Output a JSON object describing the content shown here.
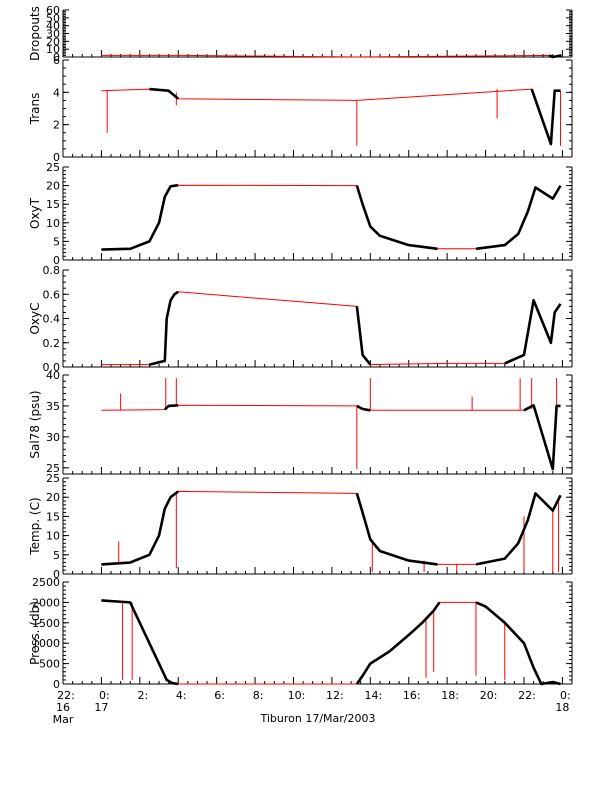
{
  "title": "Tiburon 17/Mar/2003",
  "colors": {
    "data": "#000000",
    "gap_line": "#ff0000",
    "axis": "#000000"
  },
  "x_axis": {
    "unit": "hour of 17/Mar/2003",
    "range": [
      -2,
      24.5
    ],
    "ticks": [
      {
        "value": -2,
        "lines": [
          "22:",
          "16",
          "Mar"
        ]
      },
      {
        "value": 0,
        "lines": [
          "0:",
          "17"
        ]
      },
      {
        "value": 2,
        "lines": [
          "2:"
        ]
      },
      {
        "value": 4,
        "lines": [
          "4:"
        ]
      },
      {
        "value": 6,
        "lines": [
          "6:"
        ]
      },
      {
        "value": 8,
        "lines": [
          "8:"
        ]
      },
      {
        "value": 10,
        "lines": [
          "10:"
        ]
      },
      {
        "value": 12,
        "lines": [
          "12:"
        ]
      },
      {
        "value": 14,
        "lines": [
          "14:"
        ]
      },
      {
        "value": 16,
        "lines": [
          "16:"
        ]
      },
      {
        "value": 18,
        "lines": [
          "18:"
        ]
      },
      {
        "value": 20,
        "lines": [
          "20:"
        ]
      },
      {
        "value": 22,
        "lines": [
          "22:"
        ]
      },
      {
        "value": 24,
        "lines": [
          "0:",
          "18"
        ]
      }
    ]
  },
  "chart_data": [
    {
      "type": "line",
      "ylabel": "Dropouts",
      "ylim": [
        0,
        60
      ],
      "ticks": [
        0,
        10,
        20,
        30,
        40,
        50,
        60
      ],
      "series": [
        {
          "x": [
            0,
            4.2,
            13.3,
            23.3,
            23.5,
            23.95
          ],
          "y": [
            2,
            2,
            0,
            2,
            0,
            2
          ]
        }
      ]
    },
    {
      "type": "line",
      "ylabel": "Trans",
      "ylim": [
        0,
        6
      ],
      "ticks": [
        0,
        2,
        4,
        6
      ],
      "series": [
        {
          "x": [
            0,
            2.5,
            3.5,
            4.0,
            13.3,
            22.4,
            23.4,
            23.6,
            23.9
          ],
          "y": [
            4.1,
            4.2,
            4.1,
            3.6,
            3.5,
            4.2,
            0.8,
            4.1,
            4.1
          ]
        }
      ],
      "spikes": [
        {
          "x": 0.3,
          "y0": 4.1,
          "y1": 1.5
        },
        {
          "x": 3.9,
          "y0": 4.0,
          "y1": 3.2
        },
        {
          "x": 13.3,
          "y0": 3.5,
          "y1": 0.7
        },
        {
          "x": 20.6,
          "y0": 4.2,
          "y1": 2.4
        },
        {
          "x": 23.9,
          "y0": 4.1,
          "y1": 0.7
        }
      ]
    },
    {
      "type": "line",
      "ylabel": "OxyT",
      "ylim": [
        0,
        25
      ],
      "ticks": [
        0,
        5,
        10,
        15,
        20,
        25
      ],
      "series": [
        {
          "x": [
            0,
            1.5,
            2.5,
            3.0,
            3.3,
            3.6,
            4.0,
            13.3,
            13.6,
            14.0,
            14.5,
            16.0,
            17.5,
            19.5,
            21.0,
            21.7,
            22.2,
            22.6,
            23.5,
            23.9
          ],
          "y": [
            2.8,
            3.0,
            5.0,
            10.0,
            17.0,
            19.8,
            20.1,
            20.0,
            15.0,
            9.0,
            6.5,
            4.0,
            3.0,
            3.0,
            4.0,
            7.0,
            13.0,
            19.5,
            16.5,
            20.0
          ]
        }
      ]
    },
    {
      "type": "line",
      "ylabel": "OxyC",
      "ylim": [
        0,
        0.8
      ],
      "ticks": [
        0.0,
        0.2,
        0.4,
        0.6,
        0.8
      ],
      "series": [
        {
          "x": [
            0,
            2.5,
            3.3,
            3.4,
            3.6,
            3.8,
            4.0,
            13.3,
            13.6,
            14.0,
            18.0,
            21.0,
            22.0,
            22.5,
            23.4,
            23.6,
            23.9
          ],
          "y": [
            0.02,
            0.02,
            0.05,
            0.4,
            0.55,
            0.6,
            0.62,
            0.5,
            0.1,
            0.02,
            0.03,
            0.03,
            0.1,
            0.55,
            0.2,
            0.45,
            0.52
          ]
        }
      ]
    },
    {
      "type": "line",
      "ylabel": "Sal78 (psu)",
      "ylim": [
        24,
        40
      ],
      "ticks": [
        25,
        30,
        35,
        40
      ],
      "series": [
        {
          "x": [
            0,
            3.3,
            3.5,
            4.0,
            13.3,
            13.6,
            14.0,
            22.0,
            22.5,
            23.5,
            23.7,
            23.9
          ],
          "y": [
            34.3,
            34.4,
            35.0,
            35.1,
            35.0,
            34.5,
            34.3,
            34.3,
            35.1,
            24.8,
            35.0,
            35.0
          ]
        }
      ],
      "spikes": [
        {
          "x": 1.0,
          "y0": 34.3,
          "y1": 37.0
        },
        {
          "x": 3.35,
          "y0": 34.5,
          "y1": 39.5
        },
        {
          "x": 3.9,
          "y0": 35.1,
          "y1": 39.5
        },
        {
          "x": 13.3,
          "y0": 35.0,
          "y1": 24.8
        },
        {
          "x": 14.0,
          "y0": 34.3,
          "y1": 39.5
        },
        {
          "x": 19.3,
          "y0": 34.3,
          "y1": 36.5
        },
        {
          "x": 21.8,
          "y0": 34.3,
          "y1": 39.5
        },
        {
          "x": 22.4,
          "y0": 34.5,
          "y1": 39.5
        },
        {
          "x": 23.7,
          "y0": 35.0,
          "y1": 39.5
        }
      ]
    },
    {
      "type": "line",
      "ylabel": "Temp. (C)",
      "ylim": [
        0,
        25
      ],
      "ticks": [
        0,
        5,
        10,
        15,
        20,
        25
      ],
      "series": [
        {
          "x": [
            0,
            1.5,
            2.5,
            3.0,
            3.3,
            3.6,
            4.0,
            13.3,
            13.6,
            14.0,
            14.5,
            16.0,
            17.5,
            19.5,
            21.0,
            21.7,
            22.2,
            22.6,
            23.5,
            23.9
          ],
          "y": [
            2.5,
            3.0,
            5.0,
            10.0,
            17.0,
            20.0,
            21.5,
            21.0,
            16.0,
            9.0,
            6.0,
            3.5,
            2.5,
            2.5,
            4.0,
            8.0,
            14.0,
            21.0,
            16.5,
            20.5
          ]
        }
      ],
      "spikes": [
        {
          "x": 0.9,
          "y0": 2.5,
          "y1": 8.5
        },
        {
          "x": 3.9,
          "y0": 21.0,
          "y1": 1.5
        },
        {
          "x": 14.1,
          "y0": 9.0,
          "y1": 0.5
        },
        {
          "x": 16.8,
          "y0": 3.5,
          "y1": 0.5
        },
        {
          "x": 18.5,
          "y0": 2.5,
          "y1": 0.5
        },
        {
          "x": 22.0,
          "y0": 15.0,
          "y1": 0.5
        },
        {
          "x": 23.5,
          "y0": 16.5,
          "y1": 0.5
        },
        {
          "x": 23.8,
          "y0": 20.0,
          "y1": 0.5
        }
      ]
    },
    {
      "type": "line",
      "ylabel": "Press. (db)",
      "ylim": [
        0,
        2500
      ],
      "ticks": [
        0,
        500,
        1000,
        1500,
        2000,
        2500
      ],
      "series": [
        {
          "x": [
            0,
            1.5,
            2.0,
            2.5,
            3.0,
            3.4,
            3.7,
            4.0,
            13.3,
            13.6,
            14.0,
            15.0,
            16.0,
            16.7,
            17.3,
            17.6,
            19.5,
            20.0,
            21.0,
            22.0,
            22.5,
            22.9,
            23.5,
            23.9
          ],
          "y": [
            2050,
            2000,
            1500,
            1000,
            500,
            100,
            20,
            0,
            0,
            200,
            500,
            800,
            1200,
            1500,
            1800,
            2000,
            2000,
            1900,
            1500,
            1000,
            400,
            0,
            50,
            0
          ]
        }
      ],
      "spikes": [
        {
          "x": 1.1,
          "y0": 2000,
          "y1": 100
        },
        {
          "x": 1.6,
          "y0": 2000,
          "y1": 100
        },
        {
          "x": 16.9,
          "y0": 1550,
          "y1": 150
        },
        {
          "x": 17.3,
          "y0": 1800,
          "y1": 300
        },
        {
          "x": 19.5,
          "y0": 2000,
          "y1": 200
        },
        {
          "x": 21.0,
          "y0": 1550,
          "y1": 100
        }
      ]
    }
  ]
}
